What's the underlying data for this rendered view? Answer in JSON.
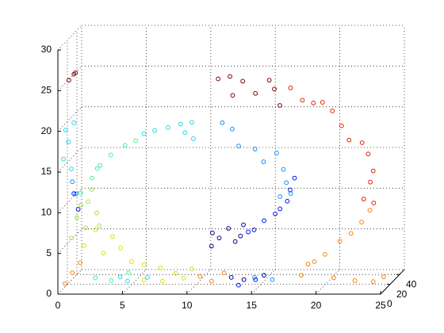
{
  "chart_data": {
    "type": "scatter3d",
    "xlim": [
      0,
      25
    ],
    "ylim": [
      0,
      50
    ],
    "zlim": [
      0,
      30
    ],
    "xticks": [
      0,
      5,
      10,
      15,
      20,
      25
    ],
    "yticks": [
      0,
      20,
      40
    ],
    "zticks": [
      0,
      5,
      10,
      15,
      20,
      25,
      30
    ],
    "grid": true,
    "series": [
      {
        "color": "#800000",
        "x": [
          0.56,
          0.8,
          1.0,
          11.9,
          13.0,
          14.1,
          14.9,
          15.9,
          16.4,
          16.9,
          13.1
        ],
        "y": [
          8,
          12,
          10,
          14,
          9,
          6,
          11,
          13,
          10,
          8,
          12
        ],
        "z": [
          25.8,
          26.3,
          26.6,
          25.6,
          26.2,
          25.8,
          24.0,
          25.5,
          24.6,
          22.7,
          23.7
        ]
      },
      {
        "color": "#dd2200",
        "x": [
          17.7,
          18.5,
          19.5,
          20.1,
          20.9,
          21.5,
          22.3,
          23.2,
          23.6,
          24.1,
          23.8,
          23.4,
          24.1
        ],
        "y": [
          9,
          12,
          8,
          11,
          10,
          13,
          7,
          10,
          12,
          9,
          11,
          8,
          10
        ],
        "z": [
          24.8,
          23.1,
          23.0,
          22.9,
          21.9,
          19.9,
          18.5,
          18.0,
          16.5,
          14.6,
          13.1,
          11.2,
          10.6
        ]
      },
      {
        "color": "#ff8000",
        "x": [
          23.8,
          23.2,
          22.3,
          21.4,
          20.4,
          19.5,
          18.9,
          18.6,
          21.0,
          22.6,
          24.1,
          24.8,
          0.56,
          1.05,
          1.7,
          10.9,
          11.9,
          12.8
        ],
        "y": [
          10,
          9,
          11,
          12,
          8,
          10,
          13,
          7,
          10,
          11,
          9,
          12,
          0,
          2,
          1,
          3,
          0,
          2
        ],
        "z": [
          9.7,
          8.3,
          6.8,
          5.8,
          4.4,
          3.4,
          2.9,
          1.9,
          1.4,
          1.0,
          1.0,
          1.4,
          1.3,
          2.5,
          3.8,
          2.0,
          1.6,
          2.5
        ]
      },
      {
        "color": "#e0e000",
        "x": [
          3.5,
          4.75,
          5.7,
          6.6,
          7.8,
          9.1,
          10.3,
          2.9,
          4.1,
          2.0,
          6.6,
          8.1,
          9.7
        ],
        "y": [
          1,
          3,
          0,
          2,
          4,
          1,
          2,
          0,
          3,
          1,
          2,
          0,
          1
        ],
        "z": [
          5.0,
          5.5,
          4.0,
          3.5,
          3.0,
          2.5,
          3.0,
          7.9,
          6.9,
          5.9,
          1.6,
          1.6,
          1.9
        ]
      },
      {
        "color": "#a0e040",
        "x": [
          1.7,
          2.3,
          2.9,
          3.2,
          1.4,
          2.0,
          2.6,
          1.05
        ],
        "y": [
          2,
          1,
          3,
          0,
          2,
          4,
          1,
          0
        ],
        "z": [
          10.8,
          11.3,
          9.8,
          8.4,
          9.3,
          7.9,
          12.8,
          6.9
        ]
      },
      {
        "color": "#40f0a0",
        "x": [
          2.6,
          3.2,
          4.1,
          5.1,
          6.0,
          2.9,
          1.7,
          2.9,
          4.1,
          5.4
        ],
        "y": [
          1,
          2,
          0,
          3,
          1,
          4,
          2,
          0,
          1,
          2
        ],
        "z": [
          14.2,
          15.7,
          17.1,
          18.1,
          18.8,
          15.2,
          12.3,
          2.0,
          1.6,
          2.5
        ]
      },
      {
        "color": "#20d8f0",
        "x": [
          6.6,
          7.5,
          8.5,
          9.4,
          10.3,
          10.5,
          9.7,
          0.56,
          0.74,
          0.43,
          0.93,
          1.2,
          4.75,
          5.4,
          6.9
        ],
        "y": [
          2,
          0,
          1,
          3,
          2,
          0,
          4,
          1,
          2,
          0,
          3,
          1,
          2,
          0,
          1
        ],
        "z": [
          19.6,
          20.1,
          20.4,
          20.7,
          21.0,
          19.1,
          19.6,
          20.1,
          18.6,
          16.6,
          15.2,
          21.0,
          2.0,
          1.6,
          2.0
        ]
      },
      {
        "color": "#1090ff",
        "x": [
          12.7,
          13.4,
          14.0,
          15.2,
          15.9,
          16.8,
          17.4,
          17.7,
          17.1,
          18.0,
          1.05,
          1.4,
          15.2,
          16.5
        ],
        "y": [
          1,
          3,
          0,
          2,
          1,
          4,
          2,
          0,
          3,
          1,
          2,
          0,
          1,
          3
        ],
        "z": [
          21.0,
          20.1,
          18.2,
          17.7,
          16.2,
          17.1,
          15.2,
          13.7,
          11.8,
          12.3,
          13.7,
          12.3,
          2.0,
          1.6
        ]
      },
      {
        "color": "#0010f0",
        "x": [
          18.3,
          18.0,
          17.7,
          17.1,
          16.8,
          15.9,
          15.2,
          14.6,
          1.2,
          1.5,
          14.0,
          15.2
        ],
        "y": [
          1,
          0,
          2,
          3,
          1,
          2,
          0,
          4,
          1,
          2,
          0,
          3
        ],
        "z": [
          14.2,
          12.8,
          11.3,
          10.3,
          9.8,
          8.9,
          7.9,
          7.4,
          12.3,
          10.3,
          1.1,
          1.6
        ]
      },
      {
        "color": "#000090",
        "x": [
          11.9,
          12.5,
          13.1,
          13.7,
          14.3,
          14.0,
          11.9,
          13.4,
          14.3,
          15.9
        ],
        "y": [
          2,
          0,
          3,
          1,
          2,
          4,
          0,
          1,
          3,
          2
        ],
        "z": [
          7.4,
          6.9,
          7.9,
          6.4,
          8.4,
          6.9,
          5.9,
          2.0,
          1.6,
          2.2
        ]
      }
    ]
  }
}
